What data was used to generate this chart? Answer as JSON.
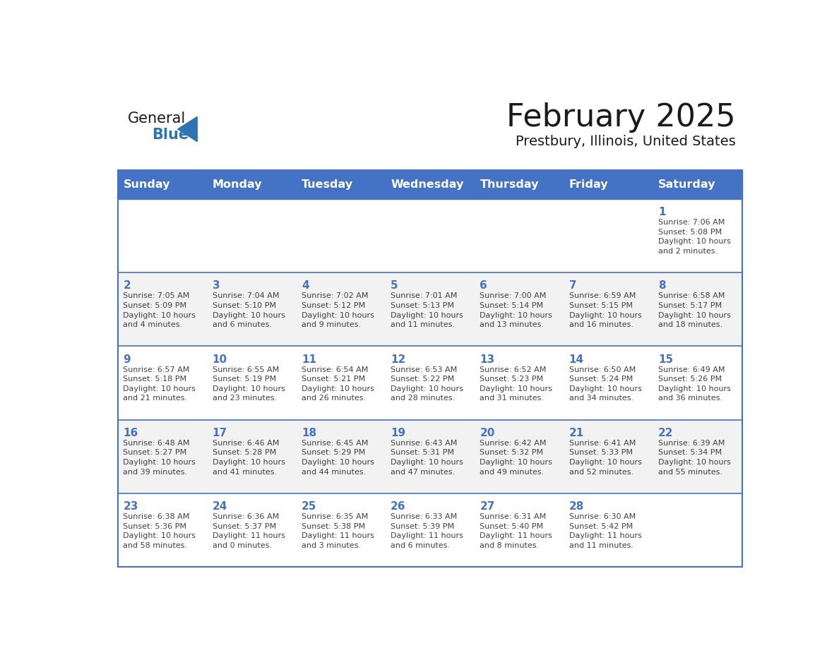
{
  "title": "February 2025",
  "subtitle": "Prestbury, Illinois, United States",
  "days_of_week": [
    "Sunday",
    "Monday",
    "Tuesday",
    "Wednesday",
    "Thursday",
    "Friday",
    "Saturday"
  ],
  "header_bg_color": "#4472C4",
  "header_text_color": "#FFFFFF",
  "cell_bg_color": "#FFFFFF",
  "alt_row_bg_color": "#F2F2F2",
  "border_color": "#4472C4",
  "day_number_color": "#4472C4",
  "text_color": "#404040",
  "title_color": "#1a1a1a",
  "subtitle_color": "#1a1a1a",
  "logo_general_color": "#1a1a1a",
  "logo_blue_color": "#2E74B5",
  "calendar_data": [
    [
      null,
      null,
      null,
      null,
      null,
      null,
      {
        "day": 1,
        "sunrise": "7:06 AM",
        "sunset": "5:08 PM",
        "daylight": "10 hours\nand 2 minutes."
      }
    ],
    [
      {
        "day": 2,
        "sunrise": "7:05 AM",
        "sunset": "5:09 PM",
        "daylight": "10 hours\nand 4 minutes."
      },
      {
        "day": 3,
        "sunrise": "7:04 AM",
        "sunset": "5:10 PM",
        "daylight": "10 hours\nand 6 minutes."
      },
      {
        "day": 4,
        "sunrise": "7:02 AM",
        "sunset": "5:12 PM",
        "daylight": "10 hours\nand 9 minutes."
      },
      {
        "day": 5,
        "sunrise": "7:01 AM",
        "sunset": "5:13 PM",
        "daylight": "10 hours\nand 11 minutes."
      },
      {
        "day": 6,
        "sunrise": "7:00 AM",
        "sunset": "5:14 PM",
        "daylight": "10 hours\nand 13 minutes."
      },
      {
        "day": 7,
        "sunrise": "6:59 AM",
        "sunset": "5:15 PM",
        "daylight": "10 hours\nand 16 minutes."
      },
      {
        "day": 8,
        "sunrise": "6:58 AM",
        "sunset": "5:17 PM",
        "daylight": "10 hours\nand 18 minutes."
      }
    ],
    [
      {
        "day": 9,
        "sunrise": "6:57 AM",
        "sunset": "5:18 PM",
        "daylight": "10 hours\nand 21 minutes."
      },
      {
        "day": 10,
        "sunrise": "6:55 AM",
        "sunset": "5:19 PM",
        "daylight": "10 hours\nand 23 minutes."
      },
      {
        "day": 11,
        "sunrise": "6:54 AM",
        "sunset": "5:21 PM",
        "daylight": "10 hours\nand 26 minutes."
      },
      {
        "day": 12,
        "sunrise": "6:53 AM",
        "sunset": "5:22 PM",
        "daylight": "10 hours\nand 28 minutes."
      },
      {
        "day": 13,
        "sunrise": "6:52 AM",
        "sunset": "5:23 PM",
        "daylight": "10 hours\nand 31 minutes."
      },
      {
        "day": 14,
        "sunrise": "6:50 AM",
        "sunset": "5:24 PM",
        "daylight": "10 hours\nand 34 minutes."
      },
      {
        "day": 15,
        "sunrise": "6:49 AM",
        "sunset": "5:26 PM",
        "daylight": "10 hours\nand 36 minutes."
      }
    ],
    [
      {
        "day": 16,
        "sunrise": "6:48 AM",
        "sunset": "5:27 PM",
        "daylight": "10 hours\nand 39 minutes."
      },
      {
        "day": 17,
        "sunrise": "6:46 AM",
        "sunset": "5:28 PM",
        "daylight": "10 hours\nand 41 minutes."
      },
      {
        "day": 18,
        "sunrise": "6:45 AM",
        "sunset": "5:29 PM",
        "daylight": "10 hours\nand 44 minutes."
      },
      {
        "day": 19,
        "sunrise": "6:43 AM",
        "sunset": "5:31 PM",
        "daylight": "10 hours\nand 47 minutes."
      },
      {
        "day": 20,
        "sunrise": "6:42 AM",
        "sunset": "5:32 PM",
        "daylight": "10 hours\nand 49 minutes."
      },
      {
        "day": 21,
        "sunrise": "6:41 AM",
        "sunset": "5:33 PM",
        "daylight": "10 hours\nand 52 minutes."
      },
      {
        "day": 22,
        "sunrise": "6:39 AM",
        "sunset": "5:34 PM",
        "daylight": "10 hours\nand 55 minutes."
      }
    ],
    [
      {
        "day": 23,
        "sunrise": "6:38 AM",
        "sunset": "5:36 PM",
        "daylight": "10 hours\nand 58 minutes."
      },
      {
        "day": 24,
        "sunrise": "6:36 AM",
        "sunset": "5:37 PM",
        "daylight": "11 hours\nand 0 minutes."
      },
      {
        "day": 25,
        "sunrise": "6:35 AM",
        "sunset": "5:38 PM",
        "daylight": "11 hours\nand 3 minutes."
      },
      {
        "day": 26,
        "sunrise": "6:33 AM",
        "sunset": "5:39 PM",
        "daylight": "11 hours\nand 6 minutes."
      },
      {
        "day": 27,
        "sunrise": "6:31 AM",
        "sunset": "5:40 PM",
        "daylight": "11 hours\nand 8 minutes."
      },
      {
        "day": 28,
        "sunrise": "6:30 AM",
        "sunset": "5:42 PM",
        "daylight": "11 hours\nand 11 minutes."
      },
      null
    ]
  ]
}
